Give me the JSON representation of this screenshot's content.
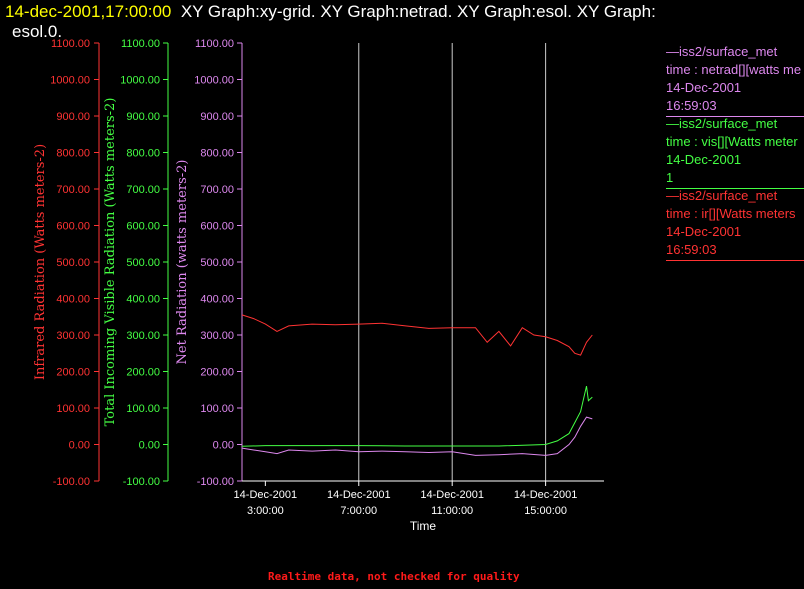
{
  "header": {
    "timestamp": "14-dec-2001,17:00:00",
    "graphs_line1": "XY Graph:xy-grid.  XY Graph:netrad.  XY Graph:esol.  XY Graph:",
    "graphs_line2": "esol.0."
  },
  "colors": {
    "background": "#000000",
    "ir": "#ff3333",
    "vis": "#44ff44",
    "net": "#dd88ee",
    "grid": "#cccccc",
    "timestamp": "#ffff00"
  },
  "legend": [
    {
      "lines": [
        "—iss2/surface_met",
        "time : netrad[][watts me",
        "14-Dec-2001",
        "16:59:03"
      ],
      "color": "#dd88ee"
    },
    {
      "lines": [
        "—iss2/surface_met",
        "time : vis[][Watts meter",
        "14-Dec-2001",
        "1"
      ],
      "color": "#44ff44"
    },
    {
      "lines": [
        "—iss2/surface_met",
        "time : ir[][Watts meters",
        "14-Dec-2001",
        "16:59:03"
      ],
      "color": "#ff3333"
    }
  ],
  "footer": {
    "warning": "Realtime data, not checked for quality"
  },
  "chart_data": {
    "type": "line",
    "xlabel": "Time",
    "x_ticks": [
      {
        "date": "14-Dec-2001",
        "time": "3:00:00",
        "hour": 3
      },
      {
        "date": "14-Dec-2001",
        "time": "7:00:00",
        "hour": 7
      },
      {
        "date": "14-Dec-2001",
        "time": "11:00:00",
        "hour": 11
      },
      {
        "date": "14-Dec-2001",
        "time": "15:00:00",
        "hour": 15
      }
    ],
    "xlim": [
      "14-Dec-2001 2:00",
      "14-Dec-2001 17:30"
    ],
    "grid": true,
    "y_axes": [
      {
        "label": "Infrared Radiation (Watts meters-2)",
        "color": "#ff3333",
        "ylim": [
          -100,
          1100
        ]
      },
      {
        "label": "Total Incoming Visible Radiation (Watts meters-2)",
        "color": "#44ff44",
        "ylim": [
          -100,
          1100
        ]
      },
      {
        "label": "Net Radiation (watts meters-2)",
        "color": "#dd88ee",
        "ylim": [
          -100,
          1100
        ]
      }
    ],
    "y_tick_labels": [
      "-100.00",
      "0.00",
      "100.00",
      "200.00",
      "300.00",
      "400.00",
      "500.00",
      "600.00",
      "700.00",
      "800.00",
      "900.00",
      "1000.00",
      "1100.00"
    ],
    "series": [
      {
        "color": "#ff3333",
        "x": [
          "02:00",
          "02:30",
          "03:00",
          "03:30",
          "04:00",
          "05:00",
          "06:00",
          "07:00",
          "08:00",
          "09:00",
          "10:00",
          "11:00",
          "12:00",
          "12:30",
          "13:00",
          "13:30",
          "14:00",
          "14:30",
          "15:00",
          "15:30",
          "16:00",
          "16:15",
          "16:30",
          "16:45",
          "17:00"
        ],
        "y": [
          355,
          345,
          330,
          310,
          325,
          330,
          328,
          330,
          332,
          325,
          318,
          320,
          320,
          280,
          310,
          270,
          320,
          300,
          295,
          285,
          268,
          250,
          245,
          280,
          300
        ]
      },
      {
        "color": "#44ff44",
        "x": [
          "02:00",
          "03:00",
          "05:00",
          "07:00",
          "09:00",
          "11:00",
          "13:00",
          "15:00",
          "15:30",
          "16:00",
          "16:15",
          "16:30",
          "16:45",
          "16:50",
          "17:00"
        ],
        "y": [
          -5,
          -3,
          -3,
          -3,
          -4,
          -4,
          -4,
          0,
          10,
          30,
          60,
          90,
          160,
          120,
          130
        ]
      },
      {
        "color": "#dd88ee",
        "x": [
          "02:00",
          "02:30",
          "03:00",
          "03:30",
          "04:00",
          "05:00",
          "06:00",
          "07:00",
          "08:00",
          "09:00",
          "10:00",
          "11:00",
          "12:00",
          "13:00",
          "14:00",
          "15:00",
          "15:30",
          "16:00",
          "16:15",
          "16:30",
          "16:45",
          "17:00"
        ],
        "y": [
          -10,
          -15,
          -20,
          -25,
          -15,
          -18,
          -15,
          -20,
          -18,
          -20,
          -22,
          -20,
          -30,
          -28,
          -25,
          -30,
          -25,
          0,
          20,
          50,
          75,
          70
        ]
      }
    ]
  }
}
